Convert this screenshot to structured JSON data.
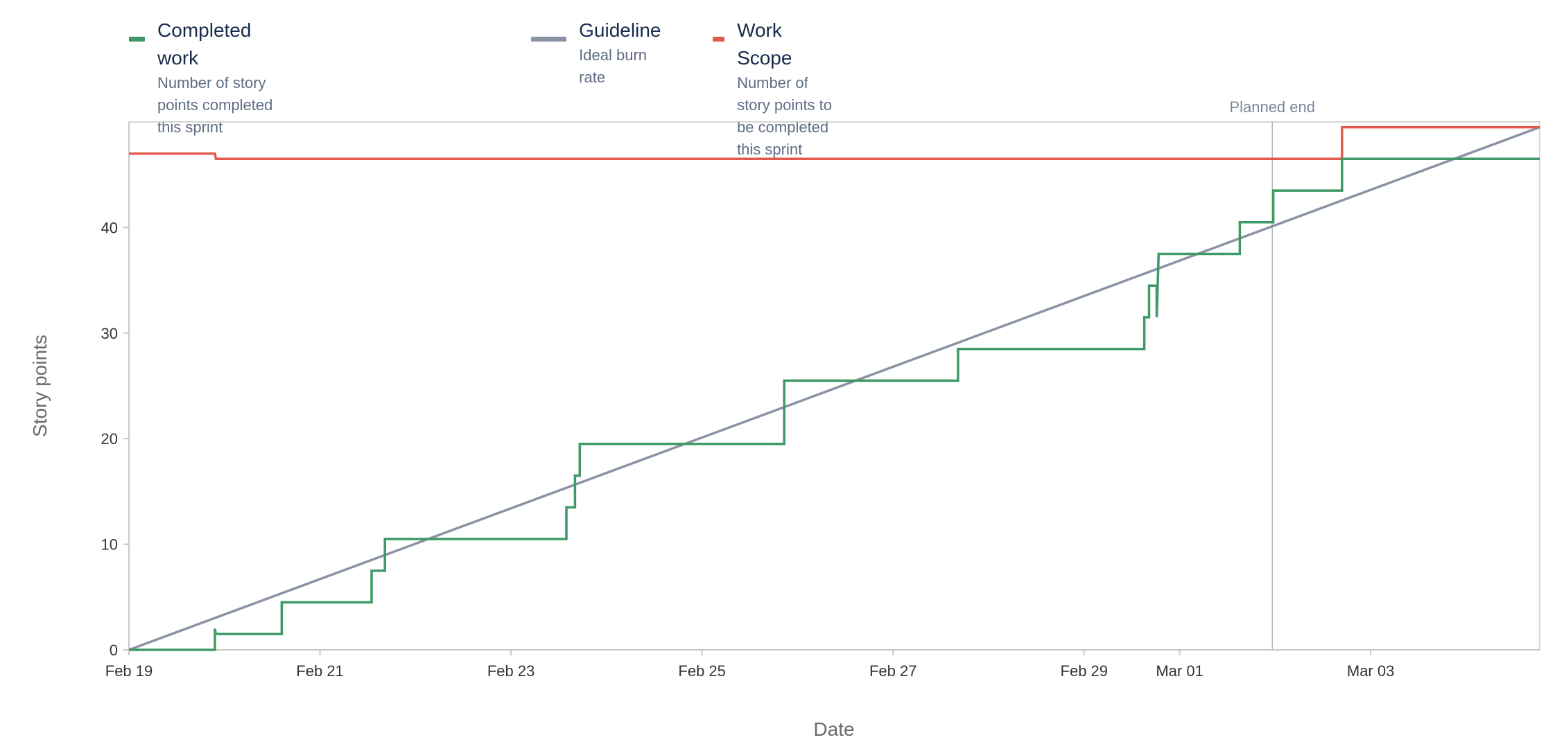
{
  "legend": [
    {
      "name": "Completed work",
      "description": "Number of story points completed this sprint",
      "color": "#3f9966"
    },
    {
      "name": "Guideline",
      "description": "Ideal burn rate",
      "color": "#8993a4"
    },
    {
      "name": "Work Scope",
      "description": "Number of story points to be completed this sprint",
      "color": "#e05a4e"
    }
  ],
  "chart_data": {
    "type": "line",
    "xlabel": "Date",
    "ylabel": "Story points",
    "x_unit": "days",
    "xlim": [
      0,
      14.77
    ],
    "ylim": [
      0,
      50
    ],
    "x_ticks": [
      {
        "x": 0,
        "label": "Feb 19"
      },
      {
        "x": 2,
        "label": "Feb 21"
      },
      {
        "x": 4,
        "label": "Feb 23"
      },
      {
        "x": 6,
        "label": "Feb 25"
      },
      {
        "x": 8,
        "label": "Feb 27"
      },
      {
        "x": 10,
        "label": "Feb 29"
      },
      {
        "x": 11,
        "label": "Mar 01"
      },
      {
        "x": 13,
        "label": "Mar 03"
      }
    ],
    "y_ticks": [
      0,
      10,
      20,
      30,
      40
    ],
    "annotation": {
      "x": 11.97,
      "label": "Planned end"
    },
    "grid": false,
    "legend_position": "top-left",
    "series": [
      {
        "name": "Completed work",
        "color": "#3f9966",
        "step": true,
        "points": [
          [
            0,
            0
          ],
          [
            0.9,
            0
          ],
          [
            0.9,
            2
          ],
          [
            0.91,
            1.5
          ],
          [
            1.6,
            1.5
          ],
          [
            1.6,
            4.5
          ],
          [
            2.54,
            4.5
          ],
          [
            2.54,
            7.5
          ],
          [
            2.68,
            7.5
          ],
          [
            2.68,
            10.5
          ],
          [
            4.58,
            10.5
          ],
          [
            4.58,
            13.5
          ],
          [
            4.67,
            13.5
          ],
          [
            4.67,
            16.5
          ],
          [
            4.72,
            16.5
          ],
          [
            4.72,
            19.5
          ],
          [
            6.86,
            19.5
          ],
          [
            6.86,
            25.5
          ],
          [
            8.68,
            25.5
          ],
          [
            8.68,
            28.5
          ],
          [
            10.63,
            28.5
          ],
          [
            10.63,
            31.5
          ],
          [
            10.68,
            31.5
          ],
          [
            10.68,
            34.5
          ],
          [
            10.76,
            34.5
          ],
          [
            10.76,
            31.5
          ],
          [
            10.78,
            37.5
          ],
          [
            11.63,
            37.5
          ],
          [
            11.63,
            40.5
          ],
          [
            11.98,
            40.5
          ],
          [
            11.98,
            43.5
          ],
          [
            12.7,
            43.5
          ],
          [
            12.7,
            46.5
          ],
          [
            14.77,
            46.5
          ]
        ]
      },
      {
        "name": "Guideline",
        "color": "#8993a4",
        "step": false,
        "points": [
          [
            0,
            0
          ],
          [
            14.77,
            49.5
          ]
        ]
      },
      {
        "name": "Work Scope",
        "color": "#e05a4e",
        "step": true,
        "points": [
          [
            0,
            47
          ],
          [
            0.9,
            47
          ],
          [
            0.91,
            46.5
          ],
          [
            12.7,
            46.5
          ],
          [
            12.7,
            49.5
          ],
          [
            14.77,
            49.5
          ]
        ]
      }
    ]
  }
}
